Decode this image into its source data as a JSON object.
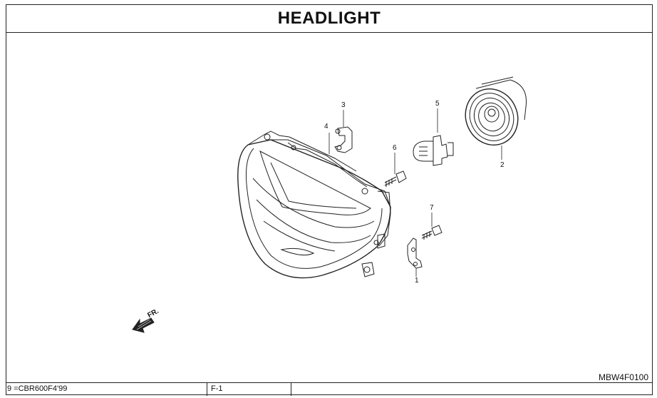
{
  "header": {
    "title": "HEADLIGHT"
  },
  "callouts": [
    {
      "id": "1",
      "label": "1"
    },
    {
      "id": "2",
      "label": "2"
    },
    {
      "id": "3",
      "label": "3"
    },
    {
      "id": "4",
      "label": "4"
    },
    {
      "id": "5",
      "label": "5"
    },
    {
      "id": "6",
      "label": "6"
    },
    {
      "id": "7",
      "label": "7"
    }
  ],
  "direction": {
    "label": "FR."
  },
  "drawing_code": "MBW4F0100",
  "footer": {
    "model": "9 =CBR600F4'99",
    "section": "F-1"
  }
}
